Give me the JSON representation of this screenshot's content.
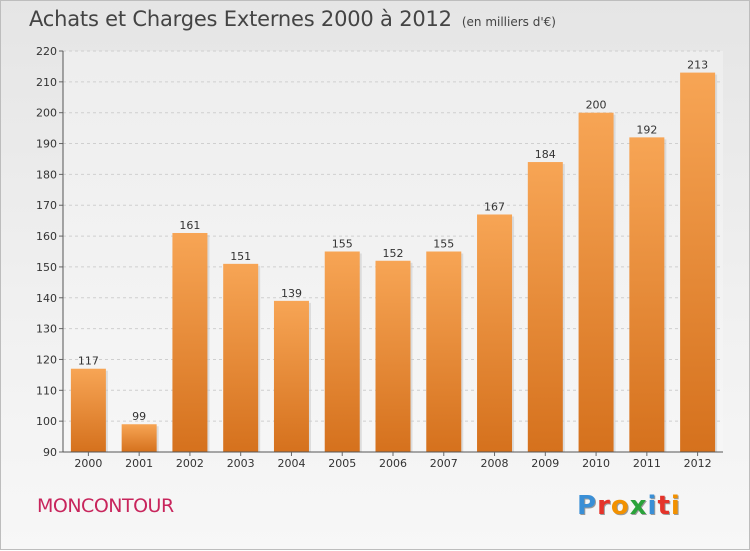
{
  "header": {
    "title": "Achats et Charges Externes 2000 à 2012",
    "unit": "(en milliers d'€)"
  },
  "footer": {
    "city": "MONCONTOUR",
    "brand_letters": [
      {
        "ch": "P",
        "color": "#3a8fd6"
      },
      {
        "ch": "r",
        "color": "#e5332a"
      },
      {
        "ch": "o",
        "color": "#f29100"
      },
      {
        "ch": "x",
        "color": "#2aa33a"
      },
      {
        "ch": "i",
        "color": "#3a8fd6"
      },
      {
        "ch": "t",
        "color": "#e5332a"
      },
      {
        "ch": "i",
        "color": "#f29100"
      }
    ]
  },
  "chart_data": {
    "type": "bar",
    "title": "Achats et Charges Externes 2000 à 2012",
    "subtitle": "(en milliers d'€)",
    "categories": [
      "2000",
      "2001",
      "2002",
      "2003",
      "2004",
      "2005",
      "2006",
      "2007",
      "2008",
      "2009",
      "2010",
      "2011",
      "2012"
    ],
    "values": [
      117,
      99,
      161,
      151,
      139,
      155,
      152,
      155,
      167,
      184,
      200,
      192,
      213
    ],
    "xlabel": "",
    "ylabel": "",
    "ylim": [
      90,
      220
    ],
    "yticks": [
      90,
      100,
      110,
      120,
      130,
      140,
      150,
      160,
      170,
      180,
      190,
      200,
      210,
      220
    ],
    "grid": true,
    "data_labels": true,
    "bar_color_top": "#f7a555",
    "bar_color_bottom": "#d5711d"
  }
}
